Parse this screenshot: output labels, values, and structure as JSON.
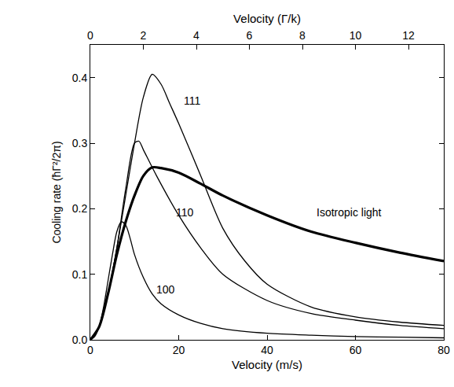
{
  "chart_data": {
    "type": "line",
    "x_label": "Velocity (m/s)",
    "x2_label": "Velocity (Γ/k)",
    "y_label": "Cooling rate (ħΓ²/2π)",
    "xlim": [
      0,
      80
    ],
    "xticks": [
      0,
      20,
      40,
      60,
      80
    ],
    "x2lim": [
      0,
      13.333
    ],
    "x2ticks": [
      0,
      2,
      4,
      6,
      8,
      10,
      12
    ],
    "ylim": [
      0,
      0.45
    ],
    "yticks": [
      {
        "value": 0,
        "label": "0.0"
      },
      {
        "value": 0.1,
        "label": "0.1"
      },
      {
        "value": 0.2,
        "label": "0.2"
      },
      {
        "value": 0.3,
        "label": "0.3"
      },
      {
        "value": 0.4,
        "label": "0.4"
      }
    ],
    "grid": false,
    "series": [
      {
        "name": "100",
        "color": "#000000",
        "line_style": "solid",
        "x": [
          0,
          1,
          2,
          3,
          4,
          5,
          6,
          7,
          8,
          9,
          10,
          12,
          14,
          16,
          20,
          25,
          30,
          40,
          50,
          60,
          70,
          80
        ],
        "values": [
          0,
          0.005,
          0.02,
          0.05,
          0.09,
          0.13,
          0.165,
          0.18,
          0.175,
          0.155,
          0.13,
          0.095,
          0.07,
          0.055,
          0.038,
          0.025,
          0.017,
          0.01,
          0.007,
          0.005,
          0.004,
          0.003
        ]
      },
      {
        "name": "110",
        "color": "#000000",
        "line_style": "solid",
        "x": [
          0,
          2,
          4,
          6,
          8,
          10,
          11,
          12,
          15,
          20,
          25,
          30,
          40,
          50,
          60,
          70,
          80
        ],
        "values": [
          0,
          0.02,
          0.07,
          0.14,
          0.23,
          0.3,
          0.303,
          0.29,
          0.25,
          0.19,
          0.14,
          0.1,
          0.06,
          0.04,
          0.03,
          0.022,
          0.017
        ]
      },
      {
        "name": "111",
        "color": "#000000",
        "line_style": "solid",
        "x": [
          0,
          2,
          4,
          6,
          8,
          10,
          12,
          14,
          16,
          18,
          20,
          25,
          30,
          35,
          40,
          50,
          60,
          70,
          80
        ],
        "values": [
          0,
          0.02,
          0.07,
          0.14,
          0.22,
          0.3,
          0.37,
          0.405,
          0.39,
          0.36,
          0.33,
          0.25,
          0.17,
          0.12,
          0.085,
          0.05,
          0.035,
          0.027,
          0.022
        ]
      },
      {
        "name": "Isotropic light",
        "color": "#000000",
        "line_style": "bold",
        "x": [
          0,
          2,
          4,
          6,
          8,
          10,
          12,
          14,
          16,
          20,
          25,
          30,
          40,
          50,
          60,
          70,
          80
        ],
        "values": [
          0,
          0.02,
          0.07,
          0.13,
          0.18,
          0.22,
          0.25,
          0.263,
          0.262,
          0.255,
          0.238,
          0.22,
          0.19,
          0.165,
          0.148,
          0.133,
          0.12
        ]
      }
    ],
    "annotations": [
      {
        "text": "111",
        "x": 23,
        "y": 0.365
      },
      {
        "text": "110",
        "x": 21.5,
        "y": 0.195
      },
      {
        "text": "100",
        "x": 17,
        "y": 0.077
      },
      {
        "text": "Isotropic light",
        "x": 58.5,
        "y": 0.195
      }
    ],
    "legend": false
  }
}
